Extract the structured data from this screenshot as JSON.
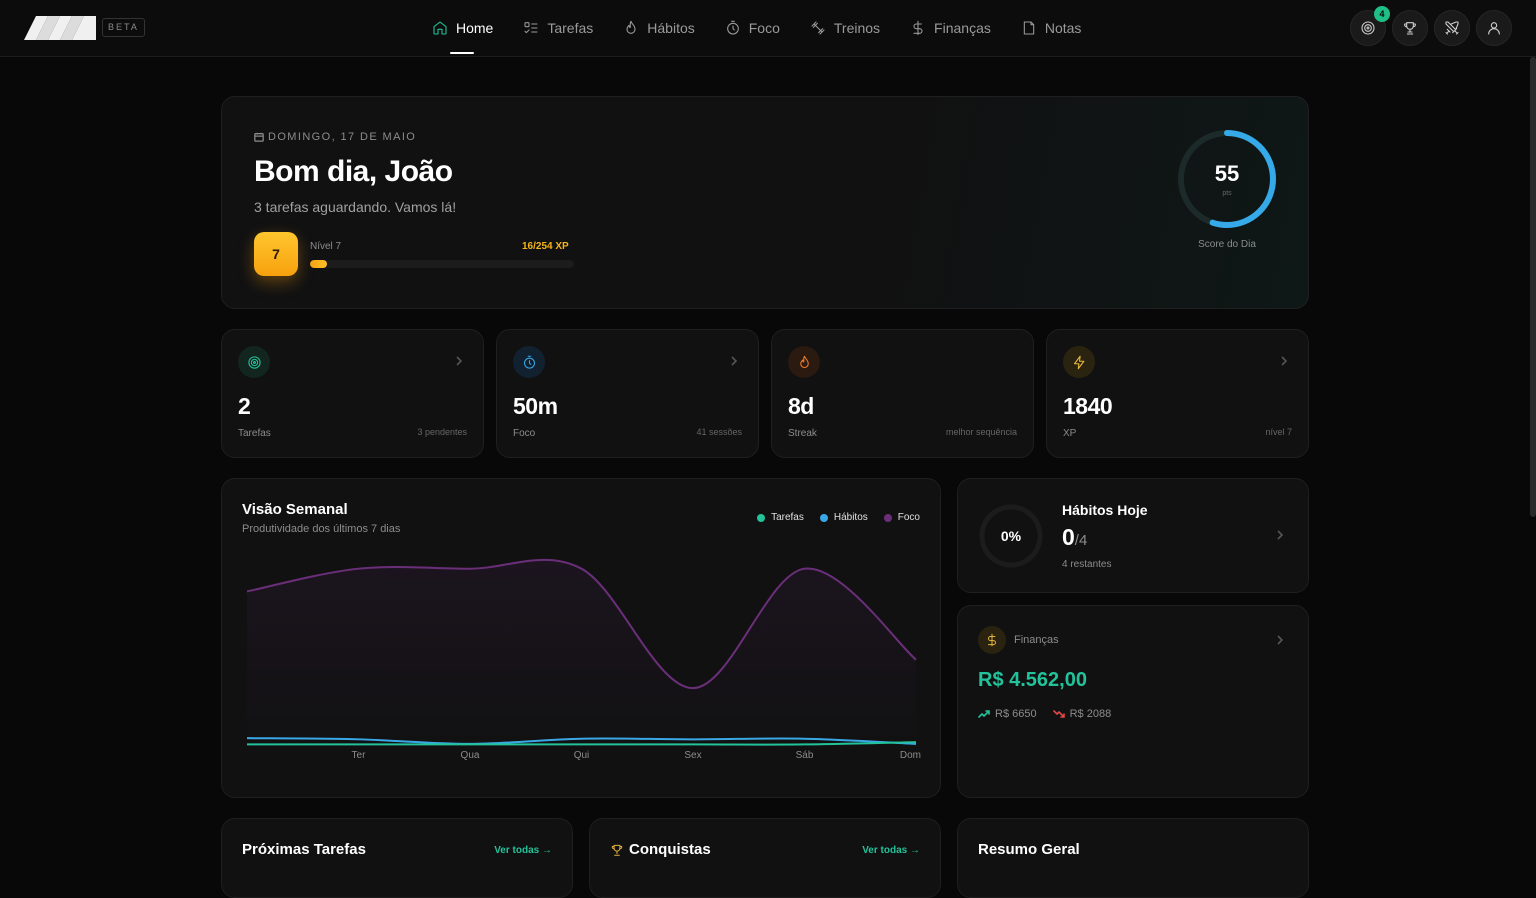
{
  "brand": {
    "beta_label": "BETA"
  },
  "nav": {
    "items": [
      {
        "label": "Home",
        "icon": "home-icon",
        "active": true
      },
      {
        "label": "Tarefas",
        "icon": "list-check-icon"
      },
      {
        "label": "Hábitos",
        "icon": "flame-icon"
      },
      {
        "label": "Foco",
        "icon": "timer-icon"
      },
      {
        "label": "Treinos",
        "icon": "dumbbell-icon"
      },
      {
        "label": "Finanças",
        "icon": "dollar-icon"
      },
      {
        "label": "Notas",
        "icon": "note-icon"
      }
    ]
  },
  "top_actions": {
    "goals_badge": "4"
  },
  "hero": {
    "date": "DOMINGO, 17 DE MAIO",
    "greeting": "Bom dia, João",
    "subtitle": "3 tarefas aguardando. Vamos lá!",
    "level_number": "7",
    "level_label": "Nível 7",
    "xp_text": "16/254 XP",
    "xp_fraction": 0.063,
    "score_value": "55",
    "score_unit": "pts",
    "score_label": "Score do Dia",
    "score_fraction": 0.55
  },
  "stats": [
    {
      "value": "2",
      "label": "Tarefas",
      "note": "3 pendentes",
      "icon": "target-icon",
      "color": "#22c39a",
      "bg": "#12261f"
    },
    {
      "value": "50m",
      "label": "Foco",
      "note": "41 sessões",
      "icon": "timer-icon",
      "color": "#3aa8e6",
      "bg": "#122130"
    },
    {
      "value": "8d",
      "label": "Streak",
      "note": "melhor sequência",
      "icon": "flame-icon",
      "color": "#f07a2c",
      "bg": "#2a1a10"
    },
    {
      "value": "1840",
      "label": "XP",
      "note": "nível 7",
      "icon": "bolt-icon",
      "color": "#e8b53a",
      "bg": "#2a2310"
    }
  ],
  "weekly": {
    "title": "Visão Semanal",
    "subtitle": "Produtividade dos últimos 7 dias"
  },
  "chart_data": {
    "type": "line",
    "x": [
      "",
      "Ter",
      "Qua",
      "Qui",
      "Sex",
      "Sáb",
      "Dom"
    ],
    "series": [
      {
        "name": "Tarefas",
        "color": "#22c39a",
        "values": [
          0.1,
          0.1,
          0.1,
          0.1,
          0.1,
          0.1,
          0.5
        ]
      },
      {
        "name": "Hábitos",
        "color": "#3aa8e6",
        "values": [
          1.2,
          1.0,
          0.2,
          1.1,
          1.0,
          1.1,
          0.2
        ]
      },
      {
        "name": "Foco",
        "color": "#6b2f7a",
        "values": [
          27,
          31,
          31,
          31,
          10,
          31,
          15
        ]
      }
    ],
    "ylim": [
      0,
      32
    ],
    "grid": false,
    "legend": "top-right"
  },
  "habits": {
    "percent": "0%",
    "title": "Hábitos Hoje",
    "done": "0",
    "total": "/4",
    "remaining": "4 restantes"
  },
  "finance": {
    "label": "Finanças",
    "balance": "R$ 4.562,00",
    "income": "R$ 6650",
    "expense": "R$ 2088"
  },
  "bottom": {
    "tasks_title": "Próximas Tarefas",
    "tasks_link": "Ver todas →",
    "achievements_title": "Conquistas",
    "achievements_link": "Ver todas →",
    "summary_title": "Resumo Geral"
  }
}
